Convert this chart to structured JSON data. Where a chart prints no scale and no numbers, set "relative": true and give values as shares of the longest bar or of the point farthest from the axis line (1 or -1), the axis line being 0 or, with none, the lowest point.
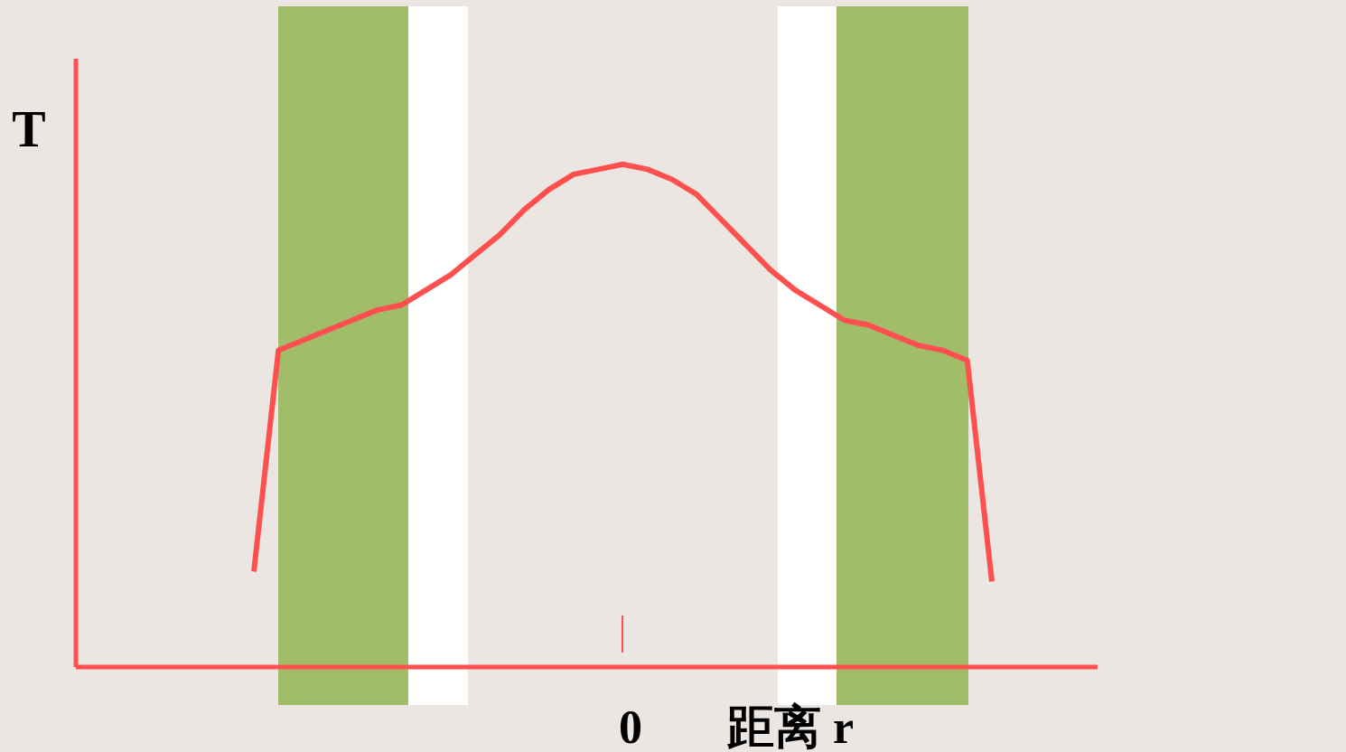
{
  "chart_data": {
    "type": "line",
    "relative": true,
    "xlabel": "距离 r",
    "ylabel": "T",
    "categories": [
      null,
      null,
      null,
      null,
      null,
      null,
      null,
      null,
      null,
      null,
      null,
      null,
      null,
      null,
      null,
      null,
      null,
      null,
      null,
      null,
      null,
      null,
      null,
      null,
      null,
      null,
      null,
      null,
      null,
      null,
      null
    ],
    "annotations": [
      "0"
    ],
    "series": [
      {
        "color": "#ff5050",
        "values": [
          0.19,
          0.63,
          0.65,
          0.67,
          0.69,
          0.71,
          0.72,
          0.75,
          0.78,
          0.82,
          0.86,
          0.91,
          0.95,
          0.98,
          0.99,
          1,
          0.99,
          0.97,
          0.94,
          0.89,
          0.84,
          0.79,
          0.75,
          0.72,
          0.69,
          0.68,
          0.66,
          0.64,
          0.63,
          0.61,
          0.17
        ]
      }
    ],
    "grid": false,
    "legend": false,
    "marker": "none",
    "line_style": "solid"
  }
}
